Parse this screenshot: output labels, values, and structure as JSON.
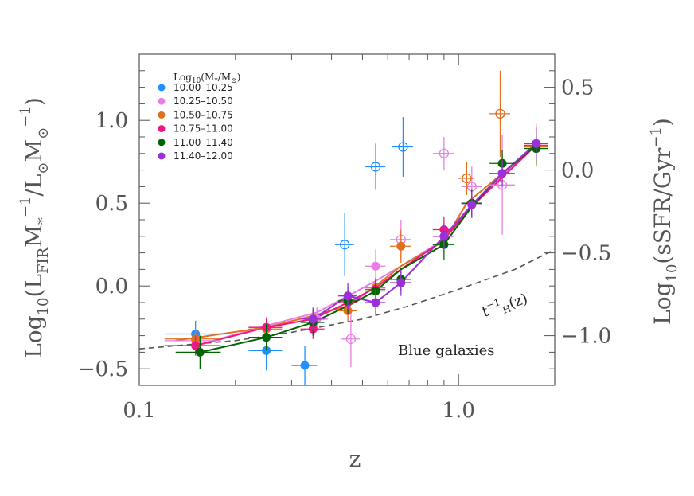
{
  "chart_data": {
    "type": "scatter",
    "title": "",
    "xlabel": "z",
    "ylabel": "Log10(LFIR M*^-1 / L⊙ M⊙^-1)",
    "ylabel_parts": {
      "pre": "Log",
      "sub10": "10",
      "open": "(L",
      "sub": "FIR",
      "mid": "M",
      "star": "*",
      "sup1": "−1",
      "slash": "/L",
      "sun1": "⊙",
      "m2": "M",
      "sun2": "⊙",
      "sup2": "−1",
      "close": ")"
    },
    "y2label_parts": {
      "pre": "Log",
      "sub10": "10",
      "body": "(sSFR/Gyr",
      "sup": "−1",
      "close": ")"
    },
    "x_scale": "log",
    "xlim": [
      0.1,
      2.0
    ],
    "ylim": [
      -0.6,
      1.4
    ],
    "y2lim": [
      -1.3,
      0.7
    ],
    "x_ticks": [
      0.1,
      1.0
    ],
    "x_tick_labels": [
      "0.1",
      "1.0"
    ],
    "y_ticks": [
      -0.5,
      0.0,
      0.5,
      1.0
    ],
    "y_tick_labels": [
      "−0.5",
      "0.0",
      "0.5",
      "1.0"
    ],
    "y2_ticks": [
      -1.0,
      -0.5,
      0.0,
      0.5
    ],
    "y2_tick_labels": [
      "−1.0",
      "−0.5",
      "0.0",
      "0.5"
    ],
    "legend": {
      "title_pre": "Log",
      "title_sub": "10",
      "title_post": "(M",
      "title_star": "*",
      "title_slash": "/M",
      "title_sun": "⊙",
      "title_close": ")",
      "placement": "top-left"
    },
    "annotations": {
      "hubble_pre": "t",
      "hubble_sup": "−1",
      "hubble_sub": "H",
      "hubble_post": "(z)",
      "sample": "Blue galaxies"
    },
    "hubble_curve": {
      "x": [
        0.1,
        0.2,
        0.3,
        0.5,
        0.7,
        1.0,
        1.5,
        2.0
      ],
      "y": [
        -0.38,
        -0.33,
        -0.28,
        -0.2,
        -0.12,
        -0.02,
        0.1,
        0.22
      ]
    },
    "series": [
      {
        "name": "10.00–10.25",
        "color": "#1e90ff",
        "fit": null,
        "points": [
          {
            "x": 0.15,
            "y": -0.29,
            "xerr": [
              0.12,
              0.19
            ],
            "yerr": 0.08,
            "open": false
          },
          {
            "x": 0.25,
            "y": -0.39,
            "xerr": [
              0.22,
              0.28
            ],
            "yerr": 0.12,
            "open": false
          },
          {
            "x": 0.33,
            "y": -0.48,
            "xerr": [
              0.3,
              0.36
            ],
            "yerr": 0.12,
            "open": false
          },
          {
            "x": 0.44,
            "y": 0.25,
            "xerr": [
              0.41,
              0.47
            ],
            "yerr": 0.19,
            "open": true
          },
          {
            "x": 0.55,
            "y": 0.72,
            "xerr": [
              0.51,
              0.59
            ],
            "yerr": 0.14,
            "open": true
          },
          {
            "x": 0.67,
            "y": 0.84,
            "xerr": [
              0.62,
              0.72
            ],
            "yerr": 0.18,
            "open": true
          }
        ]
      },
      {
        "name": "10.25–10.50",
        "color": "#e87ee2",
        "fit": [
          [
            0.15,
            -0.36
          ],
          [
            0.25,
            -0.24
          ],
          [
            0.36,
            -0.16
          ],
          [
            0.45,
            -0.06
          ],
          [
            0.55,
            0.03
          ],
          [
            0.66,
            0.12
          ],
          [
            0.9,
            0.28
          ],
          [
            1.1,
            0.49
          ],
          [
            1.75,
            0.86
          ]
        ],
        "points": [
          {
            "x": 0.15,
            "y": -0.33,
            "xerr": [
              0.12,
              0.18
            ],
            "yerr": 0.07,
            "open": false
          },
          {
            "x": 0.25,
            "y": -0.25,
            "xerr": [
              0.22,
              0.28
            ],
            "yerr": 0.06,
            "open": false
          },
          {
            "x": 0.36,
            "y": -0.2,
            "xerr": [
              0.33,
              0.39
            ],
            "yerr": 0.07,
            "open": false
          },
          {
            "x": 0.46,
            "y": -0.32,
            "xerr": [
              0.43,
              0.49
            ],
            "yerr": 0.17,
            "open": true
          },
          {
            "x": 0.55,
            "y": 0.12,
            "xerr": [
              0.51,
              0.59
            ],
            "yerr": 0.1,
            "open": false
          },
          {
            "x": 0.66,
            "y": 0.28,
            "xerr": [
              0.61,
              0.71
            ],
            "yerr": 0.12,
            "open": true
          },
          {
            "x": 0.9,
            "y": 0.8,
            "xerr": [
              0.83,
              0.97
            ],
            "yerr": 0.1,
            "open": true
          },
          {
            "x": 1.1,
            "y": 0.6,
            "xerr": [
              1.02,
              1.18
            ],
            "yerr": 0.12,
            "open": true
          },
          {
            "x": 1.37,
            "y": 0.61,
            "xerr": [
              1.25,
              1.5
            ],
            "yerr": 0.3,
            "open": true
          },
          {
            "x": 1.75,
            "y": 0.86,
            "xerr": [
              1.6,
              1.9
            ],
            "yerr": 0.12,
            "open": false
          }
        ]
      },
      {
        "name": "10.50–10.75",
        "color": "#e07020",
        "fit": [
          [
            0.13,
            -0.33
          ],
          [
            0.25,
            -0.25
          ],
          [
            0.35,
            -0.18
          ],
          [
            0.45,
            -0.12
          ],
          [
            0.55,
            0.0
          ],
          [
            0.66,
            0.12
          ],
          [
            0.9,
            0.27
          ],
          [
            1.06,
            0.5
          ],
          [
            1.75,
            0.85
          ]
        ],
        "points": [
          {
            "x": 0.15,
            "y": -0.32,
            "xerr": [
              0.12,
              0.18
            ],
            "yerr": 0.06,
            "open": false
          },
          {
            "x": 0.25,
            "y": -0.26,
            "xerr": [
              0.22,
              0.28
            ],
            "yerr": 0.06,
            "open": false
          },
          {
            "x": 0.35,
            "y": -0.2,
            "xerr": [
              0.32,
              0.38
            ],
            "yerr": 0.06,
            "open": false
          },
          {
            "x": 0.45,
            "y": -0.15,
            "xerr": [
              0.42,
              0.48
            ],
            "yerr": 0.07,
            "open": false
          },
          {
            "x": 0.55,
            "y": -0.01,
            "xerr": [
              0.51,
              0.59
            ],
            "yerr": 0.06,
            "open": false
          },
          {
            "x": 0.66,
            "y": 0.24,
            "xerr": [
              0.61,
              0.71
            ],
            "yerr": 0.1,
            "open": false
          },
          {
            "x": 1.06,
            "y": 0.65,
            "xerr": [
              1.0,
              1.12
            ],
            "yerr": 0.1,
            "open": true
          },
          {
            "x": 1.35,
            "y": 1.04,
            "xerr": [
              1.25,
              1.45
            ],
            "yerr": 0.26,
            "open": true
          },
          {
            "x": 1.75,
            "y": 0.84,
            "xerr": [
              1.6,
              1.9
            ],
            "yerr": 0.12,
            "open": false
          }
        ]
      },
      {
        "name": "10.75–11.00",
        "color": "#f0177e",
        "fit": [
          [
            0.15,
            -0.36
          ],
          [
            0.25,
            -0.25
          ],
          [
            0.35,
            -0.2
          ],
          [
            0.45,
            -0.1
          ],
          [
            0.55,
            -0.01
          ],
          [
            0.66,
            0.1
          ],
          [
            0.9,
            0.28
          ],
          [
            1.1,
            0.48
          ],
          [
            1.75,
            0.85
          ]
        ],
        "points": [
          {
            "x": 0.15,
            "y": -0.36,
            "xerr": [
              0.12,
              0.18
            ],
            "yerr": 0.06,
            "open": false
          },
          {
            "x": 0.25,
            "y": -0.25,
            "xerr": [
              0.22,
              0.28
            ],
            "yerr": 0.06,
            "open": false
          },
          {
            "x": 0.35,
            "y": -0.26,
            "xerr": [
              0.32,
              0.38
            ],
            "yerr": 0.06,
            "open": false
          },
          {
            "x": 0.45,
            "y": -0.1,
            "xerr": [
              0.42,
              0.48
            ],
            "yerr": 0.06,
            "open": false
          },
          {
            "x": 0.55,
            "y": -0.02,
            "xerr": [
              0.51,
              0.59
            ],
            "yerr": 0.06,
            "open": false
          },
          {
            "x": 0.9,
            "y": 0.34,
            "xerr": [
              0.83,
              0.97
            ],
            "yerr": 0.08,
            "open": false
          },
          {
            "x": 1.1,
            "y": 0.5,
            "xerr": [
              1.02,
              1.18
            ],
            "yerr": 0.08,
            "open": false
          },
          {
            "x": 1.75,
            "y": 0.85,
            "xerr": [
              1.6,
              1.9
            ],
            "yerr": 0.1,
            "open": false
          }
        ]
      },
      {
        "name": "11.00–11.40",
        "color": "#006400",
        "fit": [
          [
            0.155,
            -0.4
          ],
          [
            0.25,
            -0.31
          ],
          [
            0.35,
            -0.22
          ],
          [
            0.45,
            -0.12
          ],
          [
            0.55,
            -0.03
          ],
          [
            0.66,
            0.1
          ],
          [
            0.9,
            0.25
          ],
          [
            1.1,
            0.48
          ],
          [
            1.37,
            0.68
          ],
          [
            1.75,
            0.85
          ]
        ],
        "points": [
          {
            "x": 0.155,
            "y": -0.4,
            "xerr": [
              0.13,
              0.18
            ],
            "yerr": 0.1,
            "open": false
          },
          {
            "x": 0.25,
            "y": -0.31,
            "xerr": [
              0.22,
              0.28
            ],
            "yerr": 0.08,
            "open": false
          },
          {
            "x": 0.35,
            "y": -0.22,
            "xerr": [
              0.32,
              0.38
            ],
            "yerr": 0.08,
            "open": false
          },
          {
            "x": 0.45,
            "y": -0.09,
            "xerr": [
              0.42,
              0.48
            ],
            "yerr": 0.08,
            "open": false
          },
          {
            "x": 0.55,
            "y": -0.03,
            "xerr": [
              0.51,
              0.59
            ],
            "yerr": 0.07,
            "open": false
          },
          {
            "x": 0.66,
            "y": 0.04,
            "xerr": [
              0.61,
              0.71
            ],
            "yerr": 0.07,
            "open": false
          },
          {
            "x": 0.9,
            "y": 0.25,
            "xerr": [
              0.83,
              0.97
            ],
            "yerr": 0.09,
            "open": false
          },
          {
            "x": 1.1,
            "y": 0.5,
            "xerr": [
              1.02,
              1.18
            ],
            "yerr": 0.08,
            "open": false
          },
          {
            "x": 1.37,
            "y": 0.74,
            "xerr": [
              1.25,
              1.5
            ],
            "yerr": 0.08,
            "open": false
          },
          {
            "x": 1.75,
            "y": 0.83,
            "xerr": [
              1.6,
              1.9
            ],
            "yerr": 0.1,
            "open": false
          }
        ]
      },
      {
        "name": "11.40–12.00",
        "color": "#9a30d8",
        "fit": [
          [
            0.35,
            -0.2
          ],
          [
            0.45,
            -0.06
          ],
          [
            0.55,
            -0.1
          ],
          [
            0.66,
            0.02
          ],
          [
            0.9,
            0.3
          ],
          [
            1.1,
            0.49
          ],
          [
            1.37,
            0.68
          ],
          [
            1.75,
            0.86
          ]
        ],
        "points": [
          {
            "x": 0.35,
            "y": -0.2,
            "xerr": [
              0.32,
              0.38
            ],
            "yerr": 0.07,
            "open": false
          },
          {
            "x": 0.45,
            "y": -0.06,
            "xerr": [
              0.42,
              0.48
            ],
            "yerr": 0.08,
            "open": false
          },
          {
            "x": 0.55,
            "y": -0.1,
            "xerr": [
              0.51,
              0.59
            ],
            "yerr": 0.08,
            "open": false
          },
          {
            "x": 0.66,
            "y": 0.02,
            "xerr": [
              0.61,
              0.71
            ],
            "yerr": 0.08,
            "open": false
          },
          {
            "x": 0.9,
            "y": 0.3,
            "xerr": [
              0.83,
              0.97
            ],
            "yerr": 0.08,
            "open": false
          },
          {
            "x": 1.1,
            "y": 0.49,
            "xerr": [
              1.02,
              1.18
            ],
            "yerr": 0.08,
            "open": false
          },
          {
            "x": 1.37,
            "y": 0.68,
            "xerr": [
              1.25,
              1.5
            ],
            "yerr": 0.08,
            "open": false
          },
          {
            "x": 1.75,
            "y": 0.86,
            "xerr": [
              1.6,
              1.9
            ],
            "yerr": 0.1,
            "open": false
          }
        ]
      }
    ]
  }
}
